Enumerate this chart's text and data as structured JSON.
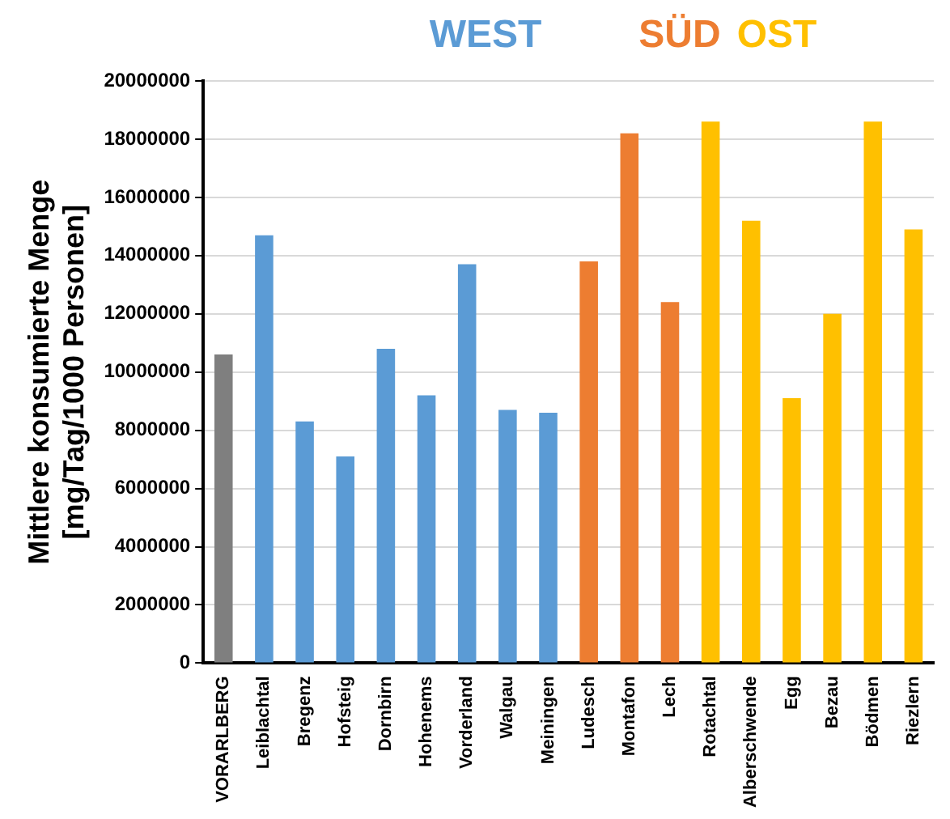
{
  "chart_data": {
    "type": "bar",
    "ylabel": "Mittlere konsumierte Menge [mg/Tag/1000 Personen]",
    "annotations": [
      "WEST",
      "SÜD",
      "OST"
    ],
    "categories": [
      "VORARLBERG",
      "Leiblachtal",
      "Bregenz",
      "Hofsteig",
      "Dornbirn",
      "Hohenems",
      "Vorderland",
      "Walgau",
      "Meiningen",
      "Ludesch",
      "Montafon",
      "Lech",
      "Rotachtal",
      "Alberschwende",
      "Egg",
      "Bezau",
      "Bödmen",
      "Riezlern"
    ],
    "values": [
      10600000,
      14700000,
      8300000,
      7100000,
      10800000,
      9200000,
      13700000,
      8700000,
      8600000,
      13800000,
      18200000,
      12400000,
      18600000,
      15200000,
      9100000,
      12000000,
      18600000,
      14900000
    ],
    "colors": [
      "#7f7f7f",
      "#5b9bd5",
      "#5b9bd5",
      "#5b9bd5",
      "#5b9bd5",
      "#5b9bd5",
      "#5b9bd5",
      "#5b9bd5",
      "#5b9bd5",
      "#ed7d31",
      "#ed7d31",
      "#ed7d31",
      "#ffc000",
      "#ffc000",
      "#ffc000",
      "#ffc000",
      "#ffc000",
      "#ffc000"
    ],
    "ylim": [
      0,
      20000000
    ],
    "yticks": [
      0,
      2000000,
      4000000,
      6000000,
      8000000,
      10000000,
      12000000,
      14000000,
      16000000,
      18000000,
      20000000
    ],
    "grid": "y",
    "legend": false
  }
}
